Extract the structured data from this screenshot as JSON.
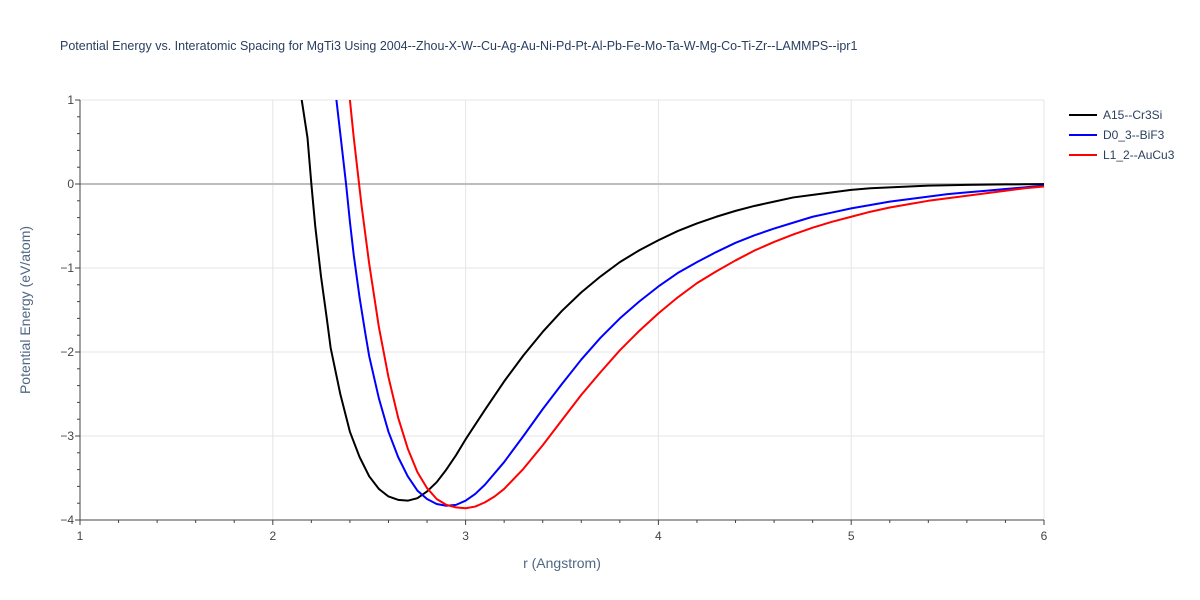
{
  "chart_data": {
    "type": "line",
    "title": "Potential Energy vs. Interatomic Spacing for MgTi3 Using 2004--Zhou-X-W--Cu-Ag-Au-Ni-Pd-Pt-Al-Pb-Fe-Mo-Ta-W-Mg-Co-Ti-Zr--LAMMPS--ipr1",
    "xlabel": "r (Angstrom)",
    "ylabel": "Potential Energy (eV/atom)",
    "xlim": [
      1,
      6
    ],
    "ylim": [
      -4,
      1
    ],
    "xticks": [
      1,
      2,
      3,
      4,
      5,
      6
    ],
    "xtick_labels": [
      "1",
      "2",
      "3",
      "4",
      "5",
      "6"
    ],
    "yticks": [
      1,
      0,
      -1,
      -2,
      -3,
      -4
    ],
    "ytick_labels": [
      "1",
      "0",
      "−1",
      "−2",
      "−3",
      "−4"
    ],
    "grid": true,
    "legend_position": "top-right",
    "series": [
      {
        "name": "A15--Cr3Si",
        "color": "#000000",
        "x": [
          2.15,
          2.18,
          2.2,
          2.22,
          2.25,
          2.28,
          2.3,
          2.35,
          2.4,
          2.45,
          2.5,
          2.55,
          2.6,
          2.65,
          2.7,
          2.75,
          2.8,
          2.85,
          2.9,
          2.95,
          3.0,
          3.1,
          3.2,
          3.3,
          3.4,
          3.5,
          3.6,
          3.7,
          3.8,
          3.9,
          4.0,
          4.1,
          4.2,
          4.3,
          4.4,
          4.5,
          4.6,
          4.7,
          4.8,
          4.9,
          5.0,
          5.1,
          5.2,
          5.3,
          5.4,
          5.5,
          5.6,
          5.7,
          5.8,
          5.9,
          6.0
        ],
        "y": [
          1.0,
          0.55,
          0.0,
          -0.5,
          -1.1,
          -1.6,
          -1.95,
          -2.5,
          -2.95,
          -3.25,
          -3.48,
          -3.63,
          -3.72,
          -3.76,
          -3.77,
          -3.74,
          -3.66,
          -3.55,
          -3.4,
          -3.23,
          -3.04,
          -2.69,
          -2.35,
          -2.04,
          -1.76,
          -1.51,
          -1.29,
          -1.1,
          -0.93,
          -0.79,
          -0.67,
          -0.56,
          -0.47,
          -0.39,
          -0.32,
          -0.26,
          -0.21,
          -0.16,
          -0.13,
          -0.1,
          -0.07,
          -0.05,
          -0.04,
          -0.03,
          -0.02,
          -0.015,
          -0.01,
          -0.008,
          -0.005,
          -0.003,
          -0.001
        ]
      },
      {
        "name": "D0_3--BiF3",
        "color": "#0000ff",
        "x": [
          2.33,
          2.36,
          2.38,
          2.4,
          2.42,
          2.45,
          2.48,
          2.5,
          2.55,
          2.6,
          2.65,
          2.7,
          2.75,
          2.8,
          2.85,
          2.9,
          2.95,
          3.0,
          3.05,
          3.1,
          3.2,
          3.3,
          3.4,
          3.5,
          3.6,
          3.7,
          3.8,
          3.9,
          4.0,
          4.1,
          4.2,
          4.3,
          4.4,
          4.5,
          4.6,
          4.7,
          4.8,
          4.9,
          5.0,
          5.1,
          5.2,
          5.3,
          5.4,
          5.5,
          5.6,
          5.7,
          5.8,
          5.9,
          6.0
        ],
        "y": [
          1.0,
          0.4,
          0.0,
          -0.45,
          -0.85,
          -1.35,
          -1.78,
          -2.05,
          -2.55,
          -2.95,
          -3.25,
          -3.48,
          -3.65,
          -3.75,
          -3.81,
          -3.83,
          -3.82,
          -3.77,
          -3.69,
          -3.58,
          -3.31,
          -3.0,
          -2.68,
          -2.38,
          -2.09,
          -1.83,
          -1.6,
          -1.4,
          -1.22,
          -1.06,
          -0.93,
          -0.81,
          -0.7,
          -0.61,
          -0.53,
          -0.46,
          -0.39,
          -0.34,
          -0.29,
          -0.25,
          -0.21,
          -0.18,
          -0.15,
          -0.12,
          -0.1,
          -0.08,
          -0.06,
          -0.04,
          -0.02
        ]
      },
      {
        "name": "L1_2--AuCu3",
        "color": "#ff0000",
        "x": [
          2.4,
          2.42,
          2.44,
          2.46,
          2.48,
          2.5,
          2.55,
          2.6,
          2.65,
          2.7,
          2.75,
          2.8,
          2.85,
          2.9,
          2.95,
          3.0,
          3.05,
          3.1,
          3.15,
          3.2,
          3.3,
          3.4,
          3.5,
          3.6,
          3.7,
          3.8,
          3.9,
          4.0,
          4.1,
          4.2,
          4.3,
          4.4,
          4.5,
          4.6,
          4.7,
          4.8,
          4.9,
          5.0,
          5.1,
          5.2,
          5.3,
          5.4,
          5.5,
          5.6,
          5.7,
          5.8,
          5.9,
          6.0
        ],
        "y": [
          1.0,
          0.55,
          0.15,
          -0.25,
          -0.6,
          -0.95,
          -1.7,
          -2.3,
          -2.78,
          -3.15,
          -3.43,
          -3.62,
          -3.75,
          -3.82,
          -3.85,
          -3.86,
          -3.84,
          -3.79,
          -3.72,
          -3.63,
          -3.39,
          -3.11,
          -2.81,
          -2.51,
          -2.24,
          -1.98,
          -1.75,
          -1.54,
          -1.35,
          -1.18,
          -1.04,
          -0.91,
          -0.79,
          -0.69,
          -0.6,
          -0.52,
          -0.45,
          -0.39,
          -0.33,
          -0.28,
          -0.24,
          -0.2,
          -0.17,
          -0.14,
          -0.11,
          -0.08,
          -0.05,
          -0.03
        ]
      }
    ]
  }
}
